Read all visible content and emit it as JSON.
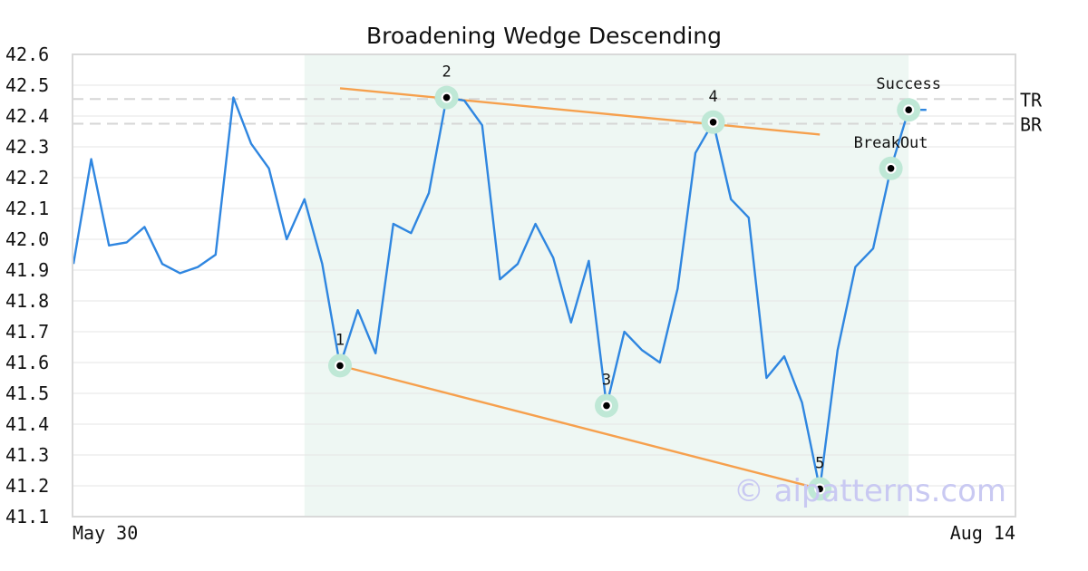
{
  "chart_data": {
    "type": "line",
    "title": "Broadening Wedge Descending",
    "x_labels": [
      "May 30",
      "Aug 14"
    ],
    "ylim": [
      41.1,
      42.6
    ],
    "yticks": [
      "42.6",
      "42.5",
      "42.4",
      "42.3",
      "42.2",
      "42.1",
      "42.0",
      "41.9",
      "41.8",
      "41.7",
      "41.6",
      "41.5",
      "41.4",
      "41.3",
      "41.2",
      "41.1"
    ],
    "grid": "horizontal",
    "series": [
      {
        "values": [
          41.92,
          42.26,
          41.98,
          41.99,
          42.04,
          41.92,
          41.89,
          41.91,
          41.95,
          42.46,
          42.31,
          42.23,
          42.0,
          42.13,
          41.92,
          41.59,
          41.77,
          41.63,
          42.05,
          42.02,
          42.15,
          42.46,
          42.45,
          42.37,
          41.87,
          41.92,
          42.05,
          41.94,
          41.73,
          41.93,
          41.46,
          41.7,
          41.64,
          41.6,
          41.84,
          42.28,
          42.38,
          42.13,
          42.07,
          41.55,
          41.62,
          41.47,
          41.19,
          41.64,
          41.91,
          41.97,
          42.23,
          42.42,
          42.42
        ]
      }
    ],
    "pattern_region": {
      "start_index": 13,
      "end_index": 47
    },
    "trendlines": [
      {
        "name": "upper",
        "from": {
          "index": 15,
          "value": 42.49
        },
        "to": {
          "index": 42,
          "value": 42.34
        }
      },
      {
        "name": "lower",
        "from": {
          "index": 15,
          "value": 41.59
        },
        "to": {
          "index": 42,
          "value": 41.19
        }
      }
    ],
    "reference_lines": [
      {
        "label": "TR",
        "value": 42.455
      },
      {
        "label": "BR",
        "value": 42.375
      }
    ],
    "points": [
      {
        "label": "1",
        "index": 15,
        "value": 41.59,
        "label_pos": "above"
      },
      {
        "label": "2",
        "index": 21,
        "value": 42.46,
        "label_pos": "above"
      },
      {
        "label": "3",
        "index": 30,
        "value": 41.46,
        "label_pos": "above"
      },
      {
        "label": "4",
        "index": 36,
        "value": 42.38,
        "label_pos": "above"
      },
      {
        "label": "5",
        "index": 42,
        "value": 41.19,
        "label_pos": "above"
      },
      {
        "label": "BreakOut",
        "index": 46,
        "value": 42.23,
        "label_pos": "above"
      },
      {
        "label": "Success",
        "index": 47,
        "value": 42.42,
        "label_pos": "above"
      }
    ],
    "colors": {
      "line": "#2f86e0",
      "trend": "#f6a04d",
      "region": "#eef7f3",
      "marker_halo": "#bfe8d6",
      "marker": "#000000",
      "grid": "#e6e6e6",
      "ref": "#d6d6d6",
      "frame": "#d9d9d9"
    }
  },
  "watermark": "© aipatterns.com"
}
